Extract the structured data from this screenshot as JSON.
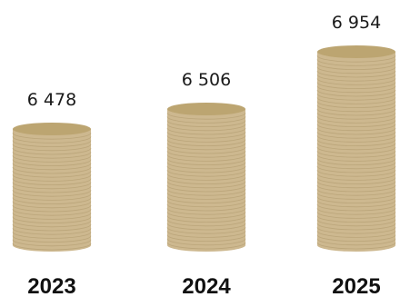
{
  "chart_data": {
    "type": "bar",
    "style": "coin-stack cylinders",
    "categories": [
      "2023",
      "2024",
      "2025"
    ],
    "values": [
      6478,
      6506,
      6954
    ],
    "value_labels": [
      "6 478",
      "6 506",
      "6 954"
    ],
    "title": "",
    "xlabel": "",
    "ylabel": "",
    "grid": false,
    "legend": "none"
  },
  "colors": {
    "coin_body": "#cdb88f",
    "coin_top": "#bca571",
    "coin_line": "#b49f73",
    "value_text": "#1a1a1a",
    "category_text": "#111111",
    "background": "#ffffff"
  }
}
